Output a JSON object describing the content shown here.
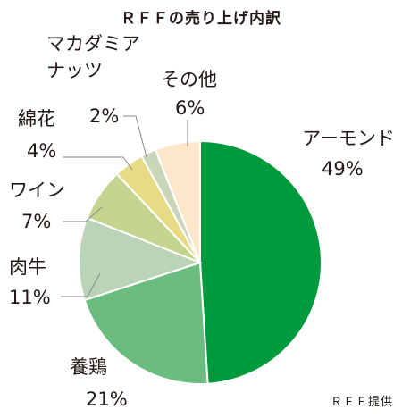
{
  "chart_data": {
    "type": "pie",
    "title": "ＲＦＦの売り上げ内訳",
    "source": "ＲＦＦ提供",
    "slices": [
      {
        "name": "アーモンド",
        "label_lines": [
          "アーモンド"
        ],
        "value": 49,
        "value_label": "49%",
        "color": "#009a3e"
      },
      {
        "name": "養鶏",
        "label_lines": [
          "養鶏"
        ],
        "value": 21,
        "value_label": "21%",
        "color": "#6bbd7f"
      },
      {
        "name": "肉牛",
        "label_lines": [
          "肉牛"
        ],
        "value": 11,
        "value_label": "11%",
        "color": "#bad4b8"
      },
      {
        "name": "ワイン",
        "label_lines": [
          "ワイン"
        ],
        "value": 7,
        "value_label": "7%",
        "color": "#c4d590"
      },
      {
        "name": "綿花",
        "label_lines": [
          "綿花"
        ],
        "value": 4,
        "value_label": "4%",
        "color": "#e8db85"
      },
      {
        "name": "マカダミアナッツ",
        "label_lines": [
          "マカダミア",
          "ナッツ"
        ],
        "value": 2,
        "value_label": "2%",
        "color": "#c9d6b8"
      },
      {
        "name": "その他",
        "label_lines": [
          "その他"
        ],
        "value": 6,
        "value_label": "6%",
        "color": "#fde7cb"
      }
    ]
  }
}
